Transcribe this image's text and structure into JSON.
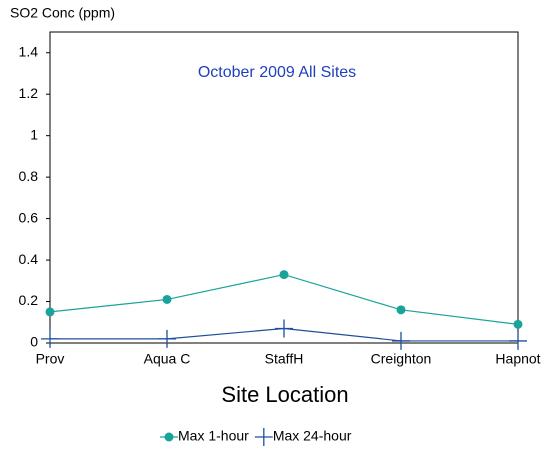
{
  "chart_data": {
    "type": "line",
    "title": "October 2009 All Sites",
    "y_label": "SO2 Conc (ppm)",
    "x_label": "Site Location",
    "categories": [
      "Prov",
      "Aqua C",
      "StaffH",
      "Creighton",
      "Hapnot"
    ],
    "series": [
      {
        "name": "Max 1-hour",
        "color": "#1aa39a",
        "marker": "circle",
        "values": [
          0.15,
          0.21,
          0.33,
          0.16,
          0.09
        ]
      },
      {
        "name": "Max 24-hour",
        "color": "#1f4e9c",
        "marker": "cross",
        "values": [
          0.02,
          0.02,
          0.07,
          0.01,
          0.01
        ]
      }
    ],
    "ylim": [
      0,
      1.5
    ],
    "yticks": [
      0,
      0.2,
      0.4,
      0.6,
      0.8,
      1,
      1.2,
      1.4
    ],
    "grid": false,
    "legend": "bottom"
  }
}
